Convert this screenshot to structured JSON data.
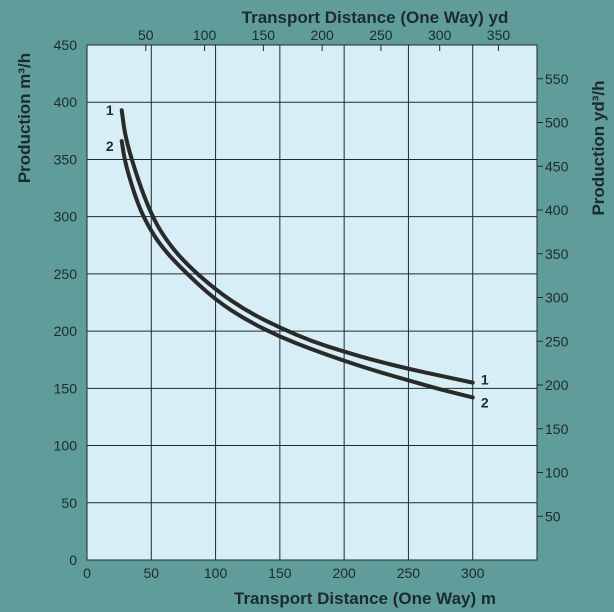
{
  "colors": {
    "background": "#5f9c9a",
    "plot_area": "#d7eef6",
    "grid": "#1c2b2d",
    "curve": "#2a2a2a",
    "text": "#1c2b2d"
  },
  "chart_data": {
    "type": "line",
    "title": "",
    "xlabel": "Transport Distance (One Way) m",
    "x2label": "Transport Distance (One Way) yd",
    "ylabel": "Production m³/h",
    "y2label": "Production yd³/h",
    "xlim": [
      0,
      350
    ],
    "ylim": [
      0,
      450
    ],
    "x_ticks": [
      0,
      50,
      100,
      150,
      200,
      250,
      300
    ],
    "y_ticks": [
      0,
      50,
      100,
      150,
      200,
      250,
      300,
      350,
      400,
      450
    ],
    "x2_ticks": [
      50,
      100,
      150,
      200,
      250,
      300,
      350
    ],
    "y2_ticks": [
      50,
      100,
      150,
      200,
      250,
      300,
      350,
      400,
      450,
      500,
      550
    ],
    "grid": true,
    "series": [
      {
        "name": "1",
        "x": [
          27,
          30,
          40,
          50,
          60,
          75,
          100,
          125,
          150,
          175,
          200,
          225,
          250,
          275,
          300
        ],
        "y": [
          393,
          368,
          331,
          302,
          282,
          261,
          236,
          217,
          203,
          191,
          182,
          174,
          167,
          161,
          155
        ]
      },
      {
        "name": "2",
        "x": [
          27,
          30,
          40,
          50,
          60,
          75,
          100,
          125,
          150,
          175,
          200,
          225,
          250,
          275,
          300
        ],
        "y": [
          366,
          345,
          309,
          287,
          271,
          253,
          227,
          209,
          195,
          184,
          174,
          165,
          157,
          149,
          142
        ]
      }
    ]
  }
}
